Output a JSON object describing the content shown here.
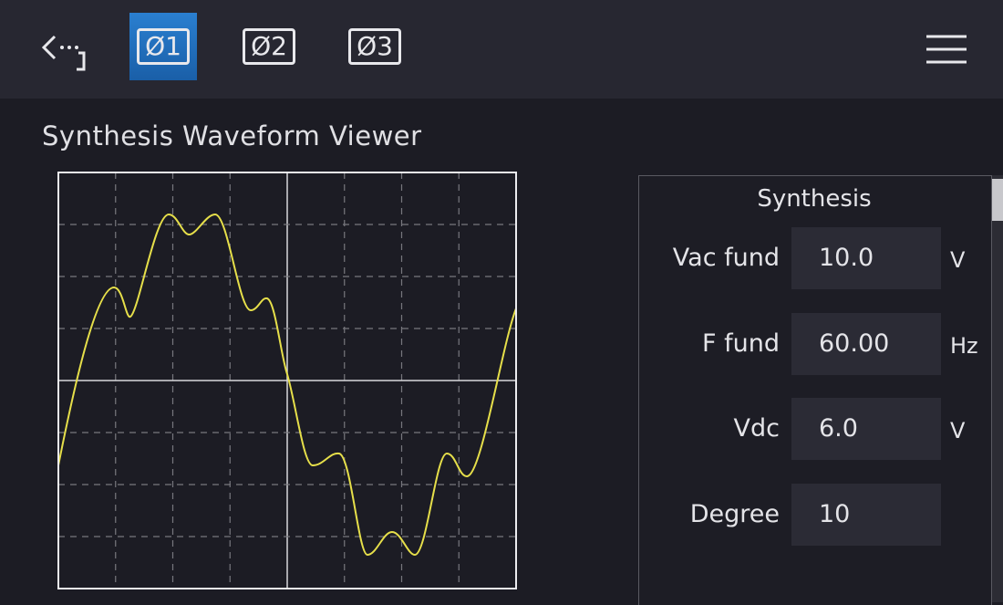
{
  "toolbar": {
    "tabs": [
      "Ø1",
      "Ø2",
      "Ø3"
    ]
  },
  "viewer": {
    "title": "Synthesis Waveform Viewer"
  },
  "panel": {
    "title": "Synthesis",
    "fields": [
      {
        "label": "Vac fund",
        "value": "10.0",
        "unit": "V"
      },
      {
        "label": "F fund",
        "value": "60.00",
        "unit": "Hz"
      },
      {
        "label": "Vdc",
        "value": "6.0",
        "unit": "V"
      },
      {
        "label": "Degree",
        "value": "10"
      }
    ]
  }
}
